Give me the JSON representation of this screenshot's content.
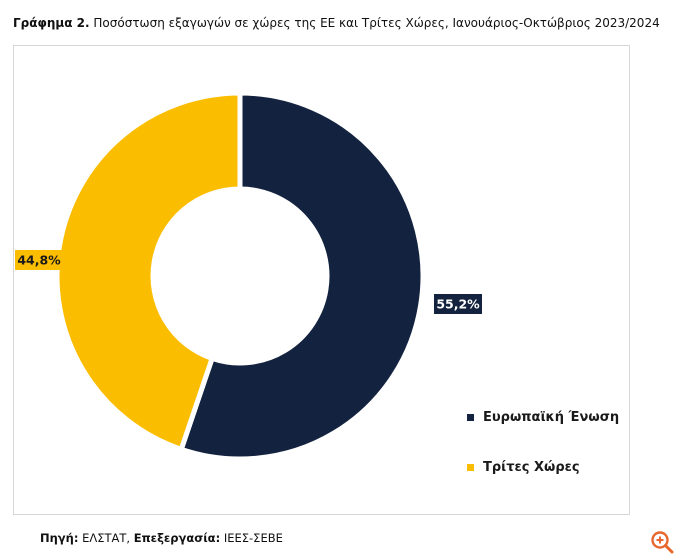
{
  "header": {
    "title_bold": "Γράφημα 2.",
    "title_text": "Ποσόστωση εξαγωγών σε χώρες της ΕΕ και Τρίτες Χώρες, Ιανουάριος-Οκτώβριος 2023/2024"
  },
  "chart_data": {
    "type": "pie",
    "donut": true,
    "title": "",
    "categories": [
      "Ευρωπαϊκή Ένωση",
      "Τρίτες Χώρες"
    ],
    "values": [
      55.2,
      44.8
    ],
    "labels": [
      "55,2%",
      "44,8%"
    ],
    "colors": [
      "#13233f",
      "#fbbd00"
    ],
    "legend_position": "right-bottom"
  },
  "footer": {
    "source_label": "Πηγή:",
    "source_value": "ΕΛΣΤΑΤ,",
    "processing_label": "Επεξεργασία:",
    "processing_value": "ΙΕΕΣ-ΣΕΒΕ"
  },
  "controls": {
    "zoom_icon": "zoom-in-icon",
    "accent": "#e8672c"
  }
}
